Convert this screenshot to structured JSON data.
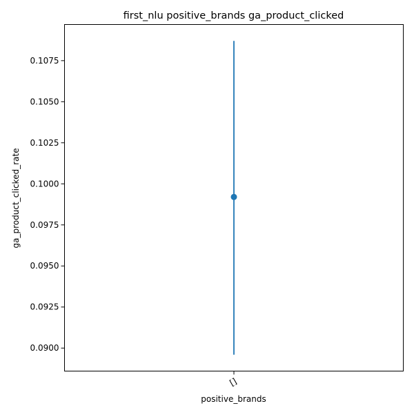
{
  "chart_data": {
    "type": "scatter",
    "title": "first_nlu positive_brands ga_product_clicked",
    "xlabel": "positive_brands",
    "ylabel": "ga_product_clicked_rate",
    "categories": [
      "[]"
    ],
    "series": [
      {
        "values": [
          0.0992
        ],
        "error_low": [
          0.0896
        ],
        "error_high": [
          0.1087
        ],
        "color": "#1f77b4"
      }
    ],
    "ylim": [
      0.0886,
      0.1097
    ],
    "yticks": [
      0.09,
      0.0925,
      0.095,
      0.0975,
      0.1,
      0.1025,
      0.105,
      0.1075
    ],
    "ytick_labels": [
      "0.0900",
      "0.0925",
      "0.0950",
      "0.0975",
      "0.1000",
      "0.1025",
      "0.1050",
      "0.1075"
    ],
    "grid": false
  }
}
